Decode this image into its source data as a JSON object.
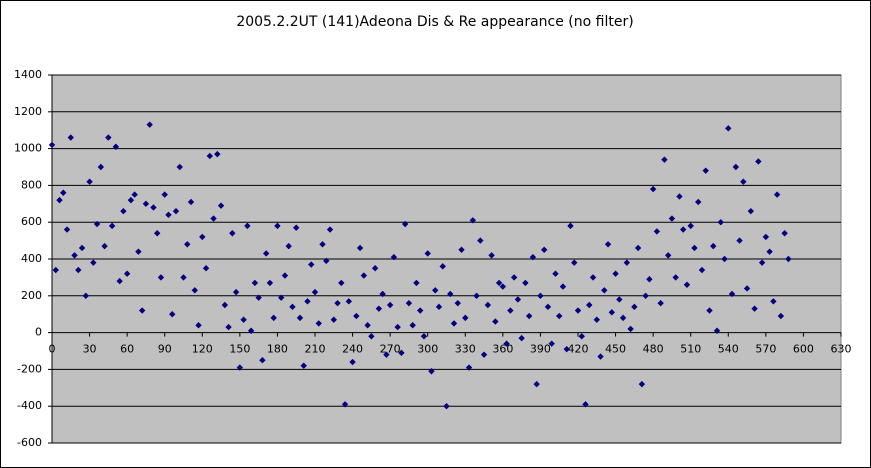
{
  "chart_data": {
    "type": "scatter",
    "title": "2005.2.2UT (141)Adeona Dis & Re appearance (no filter)",
    "color": "#000080",
    "grid": true,
    "xlim": [
      0,
      630
    ],
    "xticks": [
      0,
      30,
      60,
      90,
      120,
      150,
      180,
      210,
      240,
      270,
      300,
      330,
      360,
      390,
      420,
      450,
      480,
      510,
      540,
      570,
      600,
      630
    ],
    "ylim": [
      -600,
      1400
    ],
    "yticks": [
      -600,
      -400,
      -200,
      0,
      200,
      400,
      600,
      800,
      1000,
      1200,
      1400
    ],
    "x": [
      0,
      3,
      6,
      9,
      12,
      15,
      18,
      21,
      24,
      27,
      30,
      33,
      36,
      39,
      42,
      45,
      48,
      51,
      54,
      57,
      60,
      63,
      66,
      69,
      72,
      75,
      78,
      81,
      84,
      87,
      90,
      93,
      96,
      99,
      102,
      105,
      108,
      111,
      114,
      117,
      120,
      123,
      126,
      129,
      132,
      135,
      138,
      141,
      144,
      147,
      150,
      153,
      156,
      159,
      162,
      165,
      168,
      171,
      174,
      177,
      180,
      183,
      186,
      189,
      192,
      195,
      198,
      201,
      204,
      207,
      210,
      213,
      216,
      219,
      222,
      225,
      228,
      231,
      234,
      237,
      240,
      243,
      246,
      249,
      252,
      255,
      258,
      261,
      264,
      267,
      270,
      273,
      276,
      279,
      282,
      285,
      288,
      291,
      294,
      297,
      300,
      303,
      306,
      309,
      312,
      315,
      318,
      321,
      324,
      327,
      330,
      333,
      336,
      339,
      342,
      345,
      348,
      351,
      354,
      357,
      360,
      363,
      366,
      369,
      372,
      375,
      378,
      381,
      384,
      387,
      390,
      393,
      396,
      399,
      402,
      405,
      408,
      411,
      414,
      417,
      420,
      423,
      426,
      429,
      432,
      435,
      438,
      441,
      444,
      447,
      450,
      453,
      456,
      459,
      462,
      465,
      468,
      471,
      474,
      477,
      480,
      483,
      486,
      489,
      492,
      495,
      498,
      501,
      504,
      507,
      510,
      513,
      516,
      519,
      522,
      525,
      528,
      531,
      534,
      537,
      540,
      543,
      546,
      549,
      552,
      555,
      558,
      561,
      564,
      567,
      570,
      573,
      576,
      579,
      582,
      585,
      588
    ],
    "values": [
      1020,
      340,
      720,
      760,
      560,
      1060,
      420,
      340,
      460,
      200,
      820,
      380,
      590,
      900,
      470,
      1060,
      580,
      1010,
      280,
      660,
      320,
      720,
      750,
      440,
      120,
      700,
      1130,
      680,
      540,
      300,
      750,
      640,
      100,
      660,
      900,
      300,
      480,
      710,
      230,
      40,
      520,
      350,
      960,
      620,
      970,
      690,
      150,
      30,
      540,
      220,
      -190,
      70,
      580,
      10,
      270,
      190,
      -150,
      430,
      270,
      80,
      580,
      190,
      310,
      470,
      140,
      570,
      80,
      -180,
      170,
      370,
      220,
      50,
      480,
      390,
      560,
      70,
      160,
      270,
      -390,
      170,
      -160,
      90,
      460,
      310,
      40,
      -20,
      350,
      130,
      210,
      -120,
      150,
      410,
      30,
      -110,
      590,
      160,
      40,
      270,
      120,
      -20,
      430,
      -210,
      230,
      140,
      360,
      -400,
      210,
      50,
      160,
      450,
      80,
      -190,
      610,
      200,
      500,
      -120,
      150,
      420,
      60,
      270,
      250,
      -60,
      120,
      300,
      180,
      -30,
      270,
      90,
      410,
      -280,
      200,
      450,
      140,
      -60,
      320,
      90,
      250,
      -90,
      580,
      380,
      120,
      -20,
      -390,
      150,
      300,
      70,
      -130,
      230,
      480,
      110,
      320,
      180,
      80,
      380,
      20,
      140,
      460,
      -280,
      200,
      290,
      780,
      550,
      160,
      940,
      420,
      620,
      300,
      740,
      560,
      260,
      580,
      460,
      710,
      340,
      880,
      120,
      470,
      10,
      600,
      400,
      1110,
      210,
      900,
      500,
      820,
      240,
      660,
      130,
      930,
      380,
      520,
      440,
      170,
      750,
      90,
      540,
      400
    ]
  }
}
